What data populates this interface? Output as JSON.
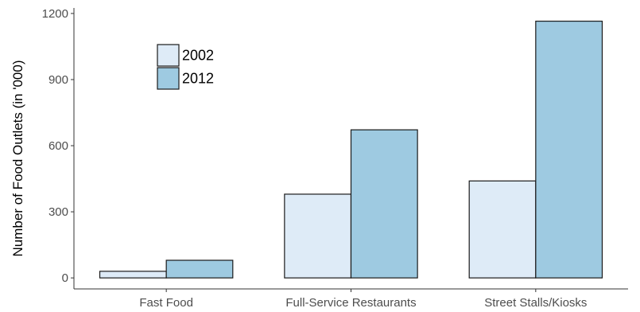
{
  "chart_data": {
    "type": "bar",
    "title": "",
    "xlabel": "",
    "ylabel": "Number of Food Outlets (in '000)",
    "categories": [
      "Fast Food",
      "Full-Service Restaurants",
      "Street Stalls/Kiosks"
    ],
    "series": [
      {
        "name": "2002",
        "color": "#deebf7",
        "values": [
          30,
          380,
          440
        ]
      },
      {
        "name": "2012",
        "color": "#9ecae1",
        "values": [
          80,
          672,
          1165
        ]
      }
    ],
    "ylim": [
      -50,
      1225
    ],
    "yticks": [
      0,
      300,
      600,
      900,
      1200
    ],
    "grid": false,
    "legend_position": "top-left"
  }
}
